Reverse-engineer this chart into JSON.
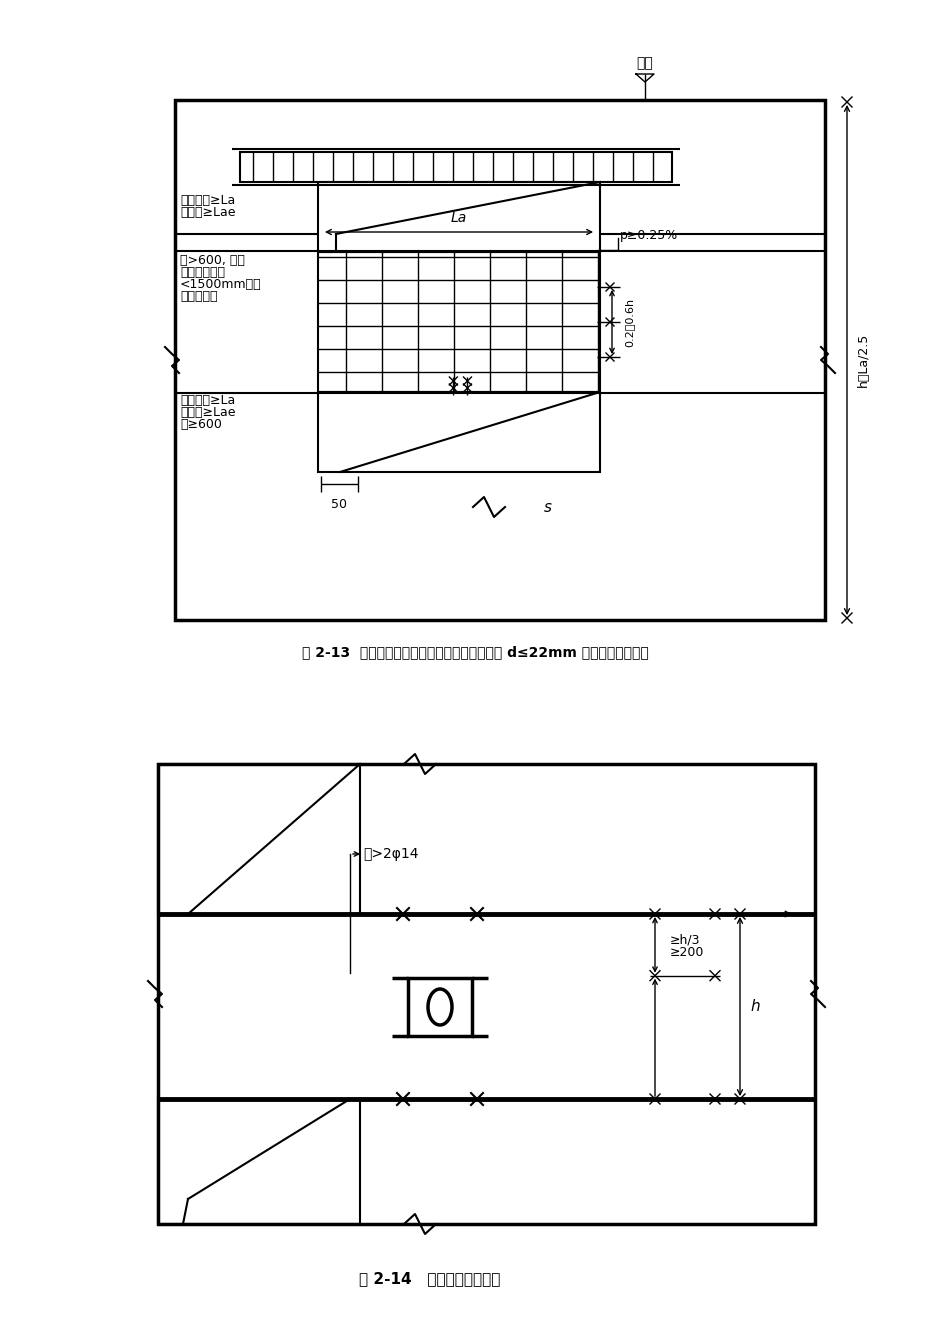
{
  "fig1_caption": "图 2-13  一、二级抗震等级非加强部位纵向钢筋 d≤22mm 时，钢筋搭接构造",
  "fig2_caption": "图 2-14   剪力墙连梁的配筋",
  "txt_dingceng": "顶层",
  "txt_fkz1": "非抗震时≥La",
  "txt_kz1": "抗震时≥Lae",
  "txt_qie1a": "且>600, 此范",
  "txt_qie1b": "围内箍筋间距",
  "txt_qie1c": "<1500mm箍筋",
  "txt_qie1d": "直径同跨中",
  "txt_La": "La",
  "txt_p": "p≥0.25%",
  "txt_02_06h": "0.2～0.6h",
  "txt_hLa25": "h＞La/2.5",
  "txt_fkz2": "非抗震时≥La",
  "txt_kz2": "抗震时≥Lae",
  "txt_qie2": "且≥600",
  "txt_50": "50",
  "txt_s": "s",
  "txt_ge2phi14": "各>2φ14",
  "txt_genh3": "≥h/3",
  "txt_ge200": "≥200",
  "txt_h": "h"
}
